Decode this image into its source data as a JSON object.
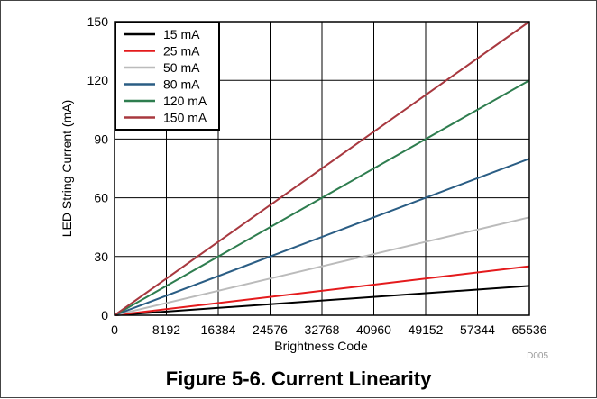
{
  "caption": "Figure 5-6. Current Linearity",
  "figure_id": "D005",
  "chart_data": {
    "type": "line",
    "title": "",
    "xlabel": "Brightness Code",
    "ylabel": "LED String Current (mA)",
    "xlim": [
      0,
      65536
    ],
    "ylim": [
      0,
      150
    ],
    "x_ticks": [
      "0",
      "8192",
      "16384",
      "24576",
      "32768",
      "40960",
      "49152",
      "57344",
      "65536"
    ],
    "y_ticks": [
      "0",
      "30",
      "60",
      "90",
      "120",
      "150"
    ],
    "grid": true,
    "legend_position": "top-left",
    "x": [
      0,
      65536
    ],
    "series": [
      {
        "name": "15 mA",
        "color": "#000000",
        "values": [
          0,
          15
        ]
      },
      {
        "name": "25 mA",
        "color": "#e41a1c",
        "values": [
          0,
          25
        ]
      },
      {
        "name": "50 mA",
        "color": "#bbbbbb",
        "values": [
          0,
          50
        ]
      },
      {
        "name": "80 mA",
        "color": "#2a5d84",
        "values": [
          0,
          80
        ]
      },
      {
        "name": "120 mA",
        "color": "#2e7d4f",
        "values": [
          0,
          120
        ]
      },
      {
        "name": "150 mA",
        "color": "#a8383f",
        "values": [
          0,
          150
        ]
      }
    ]
  }
}
